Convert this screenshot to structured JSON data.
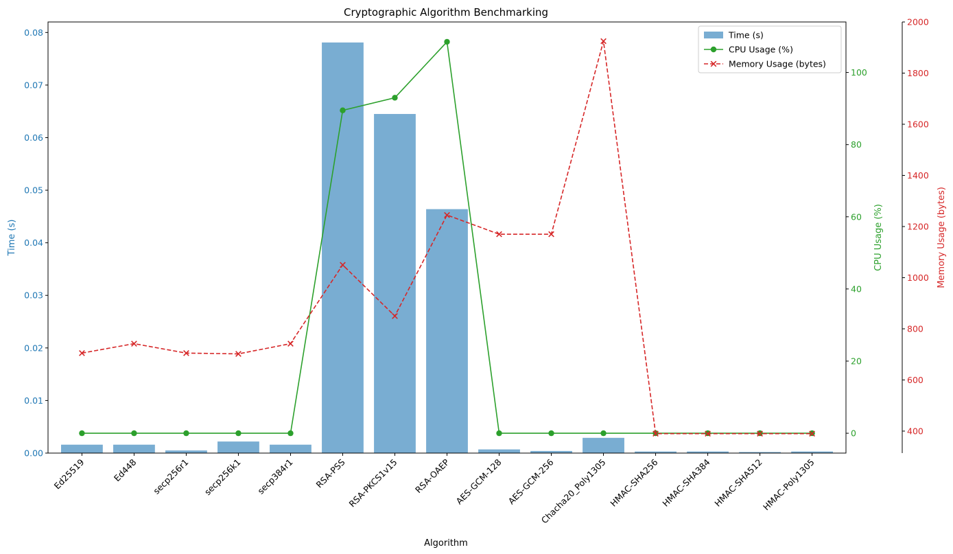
{
  "chart_data": {
    "type": "bar",
    "title": "Cryptographic Algorithm Benchmarking",
    "xlabel": "Algorithm",
    "categories": [
      "Ed25519",
      "Ed448",
      "secp256r1",
      "secp256k1",
      "secp384r1",
      "RSA-PSS",
      "RSA-PKCS1v15",
      "RSA-OAEP",
      "AES-GCM-128",
      "AES-GCM-256",
      "Chacha20_Poly1305",
      "HMAC-SHA256",
      "HMAC-SHA384",
      "HMAC-SHA512",
      "HMAC-Poly1305"
    ],
    "series": [
      {
        "name": "Time (s)",
        "type": "bar",
        "axis": "left",
        "color": "#1f77b4",
        "values": [
          0.0016,
          0.0016,
          0.0005,
          0.0022,
          0.0016,
          0.0781,
          0.0645,
          0.0464,
          0.0007,
          0.0004,
          0.0029,
          0.0003,
          0.0003,
          0.0002,
          0.0003
        ]
      },
      {
        "name": "CPU Usage (%)",
        "type": "line",
        "axis": "right",
        "color": "#2ca02c",
        "marker": "circle",
        "values": [
          0,
          0,
          0,
          0,
          0,
          89.5,
          93,
          108.5,
          0,
          0,
          0,
          0,
          0,
          0,
          0
        ]
      },
      {
        "name": "Memory Usage (bytes)",
        "type": "line",
        "axis": "right2",
        "color": "#d62728",
        "marker": "x",
        "dash": "dashed",
        "values": [
          705,
          742,
          705,
          702,
          742,
          1050,
          850,
          1245,
          1170,
          1170,
          1925,
          390,
          390,
          390,
          390
        ]
      }
    ],
    "axes": {
      "left": {
        "label": "Time (s)",
        "min": 0,
        "max": 0.082,
        "ticks": [
          0,
          0.01,
          0.02,
          0.03,
          0.04,
          0.05,
          0.06,
          0.07,
          0.08
        ],
        "tick_labels": [
          "0.00",
          "0.01",
          "0.02",
          "0.03",
          "0.04",
          "0.05",
          "0.06",
          "0.07",
          "0.08"
        ],
        "color": "#1f77b4"
      },
      "right": {
        "label": "CPU Usage (%)",
        "min": -5.5,
        "max": 114,
        "ticks": [
          0,
          20,
          40,
          60,
          80,
          100
        ],
        "tick_labels": [
          "0",
          "20",
          "40",
          "60",
          "80",
          "100"
        ],
        "color": "#2ca02c"
      },
      "right2": {
        "label": "Memory Usage (bytes)",
        "min": 314,
        "max": 2000,
        "ticks": [
          400,
          600,
          800,
          1000,
          1200,
          1400,
          1600,
          1800,
          2000
        ],
        "tick_labels": [
          "400",
          "600",
          "800",
          "1000",
          "1200",
          "1400",
          "1600",
          "1800",
          "2000"
        ],
        "color": "#d62728"
      }
    },
    "legend": {
      "position": "top-right"
    },
    "grid": false
  }
}
